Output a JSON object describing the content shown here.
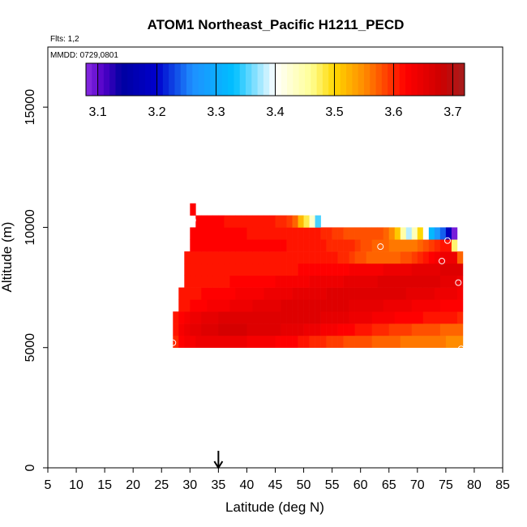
{
  "chart_data": {
    "type": "heatmap",
    "title": "ATOM1 Northeast_Pacific H1211_PECD",
    "flights_label": "Flts: 1,2",
    "dates_label": "MMDD: 0729,0801",
    "xlabel": "Latitude (deg N)",
    "ylabel": "Altitude (m)",
    "xlim": [
      5,
      85
    ],
    "ylim": [
      0,
      17500
    ],
    "x_ticks": [
      "5",
      "10",
      "15",
      "20",
      "25",
      "30",
      "35",
      "40",
      "45",
      "50",
      "55",
      "60",
      "65",
      "70",
      "75",
      "80",
      "85"
    ],
    "y_ticks": [
      "0",
      "5000",
      "10000",
      "15000"
    ],
    "colorbar": {
      "range": [
        3.08,
        3.72
      ],
      "ticks": [
        "3.1",
        "3.2",
        "3.3",
        "3.4",
        "3.5",
        "3.6",
        "3.7"
      ]
    },
    "arrow_latitude": 35,
    "cell_width_deg": 1,
    "cell_height_m": 500,
    "rows": [
      {
        "alt": 5000,
        "lat_start": 27,
        "values": [
          3.6,
          3.62,
          3.63,
          3.63,
          3.64,
          3.64,
          3.64,
          3.64,
          3.64,
          3.64,
          3.64,
          3.64,
          3.64,
          3.63,
          3.63,
          3.63,
          3.63,
          3.63,
          3.62,
          3.62,
          3.62,
          3.62,
          3.61,
          3.61,
          3.6,
          3.6,
          3.6,
          3.59,
          3.59,
          3.59,
          3.58,
          3.58,
          3.58,
          3.58,
          3.58,
          3.57,
          3.57,
          3.57,
          3.57,
          3.57,
          3.56,
          3.56,
          3.56,
          3.56,
          3.56,
          3.56,
          3.56,
          3.56,
          3.55,
          3.55,
          3.55
        ]
      },
      {
        "alt": 5500,
        "lat_start": 27,
        "values": [
          3.61,
          3.63,
          3.64,
          3.65,
          3.65,
          3.66,
          3.66,
          3.66,
          3.67,
          3.67,
          3.67,
          3.67,
          3.67,
          3.66,
          3.66,
          3.66,
          3.66,
          3.66,
          3.66,
          3.65,
          3.65,
          3.65,
          3.65,
          3.64,
          3.64,
          3.64,
          3.63,
          3.63,
          3.63,
          3.62,
          3.62,
          3.62,
          3.61,
          3.61,
          3.61,
          3.6,
          3.6,
          3.6,
          3.59,
          3.59,
          3.59,
          3.59,
          3.58,
          3.58,
          3.58,
          3.58,
          3.58,
          3.57,
          3.57,
          3.57,
          3.57
        ]
      },
      {
        "alt": 6000,
        "lat_start": 27,
        "values": [
          3.61,
          3.62,
          3.63,
          3.64,
          3.64,
          3.65,
          3.65,
          3.65,
          3.66,
          3.66,
          3.66,
          3.66,
          3.66,
          3.66,
          3.66,
          3.66,
          3.66,
          3.66,
          3.66,
          3.66,
          3.66,
          3.66,
          3.66,
          3.66,
          3.66,
          3.66,
          3.65,
          3.65,
          3.65,
          3.65,
          3.65,
          3.64,
          3.64,
          3.64,
          3.64,
          3.63,
          3.63,
          3.63,
          3.63,
          3.62,
          3.62,
          3.62,
          3.62,
          3.62,
          3.61,
          3.61,
          3.61,
          3.61,
          3.61,
          3.61,
          3.6
        ]
      },
      {
        "alt": 6500,
        "lat_start": 28,
        "values": [
          3.61,
          3.61,
          3.62,
          3.62,
          3.62,
          3.63,
          3.63,
          3.63,
          3.63,
          3.64,
          3.64,
          3.64,
          3.64,
          3.65,
          3.65,
          3.65,
          3.65,
          3.65,
          3.66,
          3.66,
          3.66,
          3.66,
          3.66,
          3.66,
          3.66,
          3.66,
          3.66,
          3.66,
          3.66,
          3.66,
          3.65,
          3.65,
          3.65,
          3.65,
          3.65,
          3.65,
          3.64,
          3.64,
          3.64,
          3.64,
          3.64,
          3.63,
          3.63,
          3.63,
          3.63,
          3.63,
          3.62,
          3.62,
          3.62,
          3.62
        ]
      },
      {
        "alt": 7000,
        "lat_start": 28,
        "values": [
          3.61,
          3.61,
          3.61,
          3.61,
          3.62,
          3.62,
          3.62,
          3.62,
          3.62,
          3.62,
          3.63,
          3.63,
          3.63,
          3.63,
          3.63,
          3.64,
          3.64,
          3.64,
          3.64,
          3.64,
          3.65,
          3.65,
          3.65,
          3.65,
          3.65,
          3.65,
          3.66,
          3.66,
          3.66,
          3.66,
          3.66,
          3.66,
          3.66,
          3.66,
          3.66,
          3.66,
          3.66,
          3.66,
          3.66,
          3.66,
          3.65,
          3.65,
          3.65,
          3.65,
          3.65,
          3.64,
          3.64,
          3.64,
          3.64,
          3.63
        ]
      },
      {
        "alt": 7500,
        "lat_start": 29,
        "values": [
          3.61,
          3.61,
          3.61,
          3.61,
          3.61,
          3.61,
          3.61,
          3.61,
          3.62,
          3.62,
          3.62,
          3.62,
          3.62,
          3.62,
          3.62,
          3.62,
          3.63,
          3.63,
          3.63,
          3.63,
          3.63,
          3.63,
          3.64,
          3.64,
          3.64,
          3.64,
          3.64,
          3.64,
          3.65,
          3.65,
          3.65,
          3.65,
          3.65,
          3.65,
          3.66,
          3.66,
          3.66,
          3.66,
          3.66,
          3.66,
          3.66,
          3.66,
          3.66,
          3.66,
          3.66,
          3.65,
          3.65,
          3.65,
          3.64
        ]
      },
      {
        "alt": 8000,
        "lat_start": 29,
        "values": [
          3.61,
          3.61,
          3.61,
          3.61,
          3.61,
          3.61,
          3.61,
          3.61,
          3.61,
          3.61,
          3.61,
          3.61,
          3.61,
          3.61,
          3.61,
          3.61,
          3.61,
          3.61,
          3.61,
          3.61,
          3.62,
          3.62,
          3.62,
          3.62,
          3.62,
          3.62,
          3.62,
          3.62,
          3.62,
          3.63,
          3.63,
          3.63,
          3.63,
          3.63,
          3.63,
          3.64,
          3.64,
          3.64,
          3.64,
          3.64,
          3.65,
          3.65,
          3.65,
          3.65,
          3.65,
          3.66,
          3.66,
          3.66,
          3.66
        ]
      },
      {
        "alt": 8500,
        "lat_start": 29,
        "values": [
          3.61,
          3.61,
          3.61,
          3.61,
          3.61,
          3.61,
          3.61,
          3.61,
          3.61,
          3.61,
          3.61,
          3.61,
          3.61,
          3.61,
          3.61,
          3.61,
          3.61,
          3.61,
          3.61,
          3.61,
          3.61,
          3.61,
          3.61,
          3.61,
          3.61,
          3.61,
          3.61,
          3.6,
          3.6,
          3.59,
          3.58,
          3.58,
          3.57,
          3.57,
          3.57,
          3.57,
          3.57,
          3.57,
          3.58,
          3.58,
          3.59,
          3.6,
          3.61,
          3.62,
          3.63,
          3.64,
          3.64,
          3.64,
          3.57
        ]
      },
      {
        "alt": 9000,
        "lat_start": 30,
        "values": [
          3.62,
          3.62,
          3.62,
          3.62,
          3.62,
          3.62,
          3.62,
          3.62,
          3.62,
          3.62,
          3.62,
          3.62,
          3.62,
          3.62,
          3.62,
          3.62,
          3.62,
          3.61,
          3.61,
          3.61,
          3.61,
          3.61,
          3.61,
          3.61,
          3.6,
          3.6,
          3.6,
          3.6,
          3.6,
          3.59,
          3.58,
          3.58,
          3.57,
          3.57,
          3.57,
          3.56,
          3.56,
          3.56,
          3.56,
          3.56,
          3.57,
          3.58,
          3.59,
          3.6,
          3.61,
          3.61,
          3.47
        ]
      },
      {
        "alt": 9500,
        "lat_start": 30,
        "values": [
          3.62,
          3.62,
          3.62,
          3.62,
          3.62,
          3.62,
          3.62,
          3.62,
          3.62,
          3.62,
          3.61,
          3.61,
          3.61,
          3.61,
          3.61,
          3.61,
          3.61,
          3.61,
          3.61,
          3.61,
          3.61,
          3.61,
          3.61,
          3.6,
          3.6,
          3.59,
          3.59,
          3.58,
          3.58,
          3.58,
          3.58,
          3.58,
          3.58,
          3.58,
          3.57,
          3.55,
          3.51,
          3.45,
          3.38,
          3.44,
          3.5,
          3.4,
          3.32,
          3.27,
          3.24,
          3.18,
          3.09
        ]
      },
      {
        "alt": 10000,
        "lat_start": 31,
        "values": [
          3.62,
          3.62,
          3.62,
          3.62,
          3.62,
          3.61,
          3.61,
          3.61,
          3.61,
          3.61,
          3.61,
          3.61,
          3.61,
          3.61,
          3.6,
          3.6,
          3.59,
          3.57,
          3.52,
          3.48,
          3.43,
          3.35
        ]
      },
      {
        "alt": 10500,
        "lat_start": 30,
        "values": [
          3.62
        ]
      }
    ],
    "points": [
      {
        "lat": 27.0,
        "alt": 5200
      },
      {
        "lat": 30.5,
        "alt": 10300
      },
      {
        "lat": 63.5,
        "alt": 9200
      },
      {
        "lat": 74.3,
        "alt": 8600
      },
      {
        "lat": 75.3,
        "alt": 9450
      },
      {
        "lat": 77.2,
        "alt": 7700
      },
      {
        "lat": 77.7,
        "alt": 4950
      }
    ]
  }
}
